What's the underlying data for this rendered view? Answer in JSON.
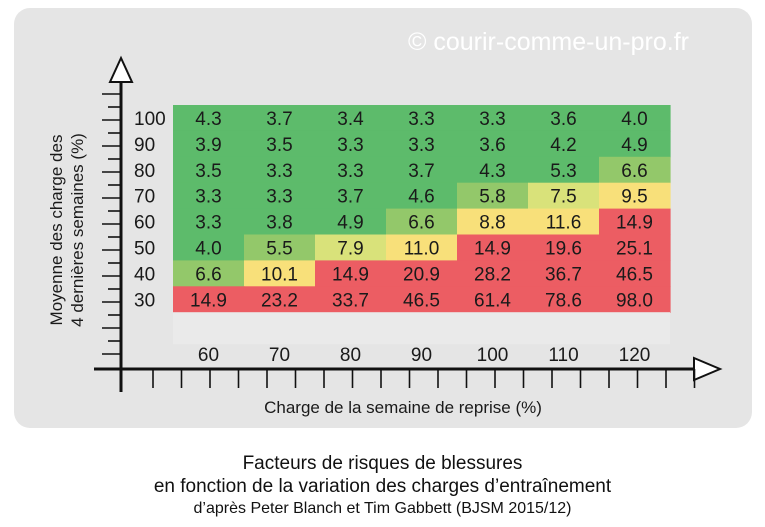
{
  "watermark": "© courir-comme-un-pro.fr",
  "caption": {
    "line1": "Facteurs de risques de blessures",
    "line2": "en fonction de la variation des charges d’entraînement",
    "line3": "d’après Peter Blanch et Tim Gabbett (BJSM 2015/12)"
  },
  "chart_data": {
    "type": "heatmap",
    "title": "",
    "xlabel": "Charge de la semaine de reprise (%)",
    "ylabel_lines": [
      "Moyenne des charge des",
      "4 dernières semaines (%)"
    ],
    "x": [
      "60",
      "70",
      "80",
      "90",
      "100",
      "110",
      "120"
    ],
    "y": [
      "100",
      "90",
      "80",
      "70",
      "60",
      "50",
      "40",
      "30"
    ],
    "values": [
      [
        "4.3",
        "3.7",
        "3.4",
        "3.3",
        "3.3",
        "3.6",
        "4.0"
      ],
      [
        "3.9",
        "3.5",
        "3.3",
        "3.3",
        "3.6",
        "4.2",
        "4.9"
      ],
      [
        "3.5",
        "3.3",
        "3.3",
        "3.7",
        "4.3",
        "5.3",
        "6.6"
      ],
      [
        "3.3",
        "3.3",
        "3.7",
        "4.6",
        "5.8",
        "7.5",
        "9.5"
      ],
      [
        "3.3",
        "3.8",
        "4.9",
        "6.6",
        "8.8",
        "11.6",
        "14.9"
      ],
      [
        "4.0",
        "5.5",
        "7.9",
        "11.0",
        "14.9",
        "19.6",
        "25.1"
      ],
      [
        "6.6",
        "10.1",
        "14.9",
        "20.9",
        "28.2",
        "36.7",
        "46.5"
      ],
      [
        "14.9",
        "23.2",
        "33.7",
        "46.5",
        "61.4",
        "78.6",
        "98.0"
      ]
    ],
    "colors": {
      "green": "#5dbb6b",
      "light_green": "#93c86a",
      "yellow_green": "#d9e27a",
      "yellow": "#f8e07a",
      "orange": "#f5a860",
      "red": "#ec5d63"
    }
  }
}
